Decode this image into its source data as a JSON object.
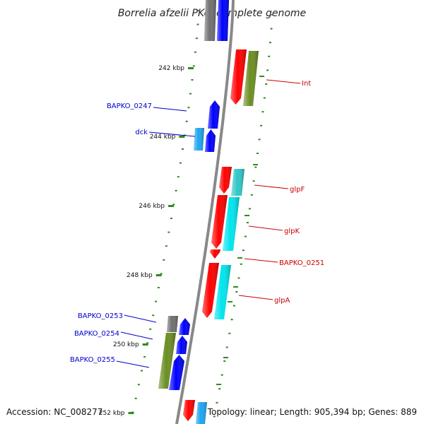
{
  "title": "Borrelia afzelii PKo, complete genome",
  "footer": {
    "accession": "Accession: NC_008277",
    "topology": "Topology: linear; Length: 905,394 bp; Genes: 889"
  },
  "colors": {
    "backbone": "#888888",
    "tick": "#2e8b1f",
    "red": "#ff0000",
    "cyan": "#00e5ee",
    "teal": "#2ec8c8",
    "blue": "#0000ff",
    "lightblue": "#1ea5f0",
    "olive": "#6b8e23",
    "gray": "#707070",
    "label_red": "#cc0000",
    "label_blue": "#0000cc"
  },
  "ticks": [
    {
      "label": "242 kbp"
    },
    {
      "label": "244 kbp"
    },
    {
      "label": "246 kbp"
    },
    {
      "label": "248 kbp"
    },
    {
      "label": "250 kbp"
    },
    {
      "label": "252 kbp"
    }
  ],
  "genes": [
    {
      "id": "top_gray",
      "color": "gray"
    },
    {
      "id": "top_blue",
      "color": "blue"
    },
    {
      "id": "Int_red",
      "color": "red"
    },
    {
      "id": "Int_olive",
      "color": "olive"
    },
    {
      "id": "BAPKO_0247",
      "color": "blue"
    },
    {
      "id": "dck_lightblue",
      "color": "lightblue"
    },
    {
      "id": "dck_blue",
      "color": "blue"
    },
    {
      "id": "glpF_red",
      "color": "red"
    },
    {
      "id": "glpF_teal",
      "color": "teal"
    },
    {
      "id": "glpK_red",
      "color": "red"
    },
    {
      "id": "glpK_cyan",
      "color": "cyan"
    },
    {
      "id": "BAPKO_0251",
      "color": "red"
    },
    {
      "id": "glpA_red",
      "color": "red"
    },
    {
      "id": "glpA_cyan",
      "color": "cyan"
    },
    {
      "id": "BAPKO_0253_gray",
      "color": "gray"
    },
    {
      "id": "BAPKO_0253_blue",
      "color": "blue"
    },
    {
      "id": "BAPKO_0254_olive",
      "color": "olive"
    },
    {
      "id": "BAPKO_0254_blue",
      "color": "blue"
    },
    {
      "id": "BAPKO_0255_blue",
      "color": "blue"
    },
    {
      "id": "bottom_red",
      "color": "red"
    },
    {
      "id": "bottom_lightblue",
      "color": "lightblue"
    }
  ],
  "labels": [
    {
      "text": "Int",
      "color": "label_red"
    },
    {
      "text": "BAPKO_0247",
      "color": "label_blue"
    },
    {
      "text": "dck",
      "color": "label_blue"
    },
    {
      "text": "glpF",
      "color": "label_red"
    },
    {
      "text": "glpK",
      "color": "label_red"
    },
    {
      "text": "BAPKO_0251",
      "color": "label_red"
    },
    {
      "text": "glpA",
      "color": "label_red"
    },
    {
      "text": "BAPKO_0253",
      "color": "label_blue"
    },
    {
      "text": "BAPKO_0254",
      "color": "label_blue"
    },
    {
      "text": "BAPKO_0255",
      "color": "label_blue"
    }
  ]
}
